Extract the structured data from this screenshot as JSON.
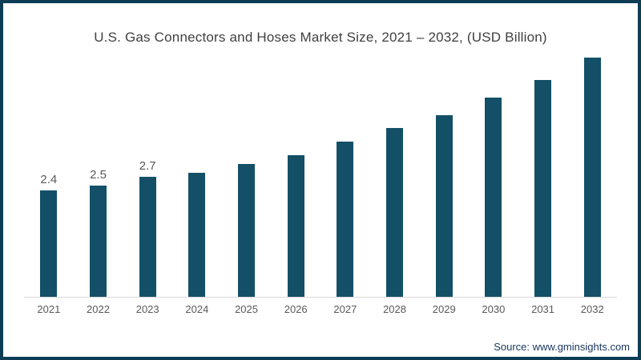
{
  "title": "U.S. Gas Connectors and Hoses Market Size, 2021 – 2032, (USD Billion)",
  "source": "Source: www.gminsights.com",
  "colors": {
    "bar": "#135067",
    "border": "#0d3c55",
    "title_text": "#404040",
    "label_text": "#595959",
    "axis_line": "#d9d9d9",
    "source_text": "#17375e",
    "background": "#ffffff"
  },
  "chart_data": {
    "type": "bar",
    "title": "U.S. Gas Connectors and Hoses Market Size, 2021 – 2032, (USD Billion)",
    "categories": [
      "2021",
      "2022",
      "2023",
      "2024",
      "2025",
      "2026",
      "2027",
      "2028",
      "2029",
      "2030",
      "2031",
      "2032"
    ],
    "values": [
      2.4,
      2.5,
      2.7,
      2.8,
      3.0,
      3.2,
      3.5,
      3.8,
      4.1,
      4.5,
      4.9,
      5.4
    ],
    "data_labels": [
      "2.4",
      "2.5",
      "2.7",
      "",
      "",
      "",
      "",
      "",
      "",
      "",
      "",
      ""
    ],
    "xlabel": "",
    "ylabel": "",
    "ylim": [
      0,
      5.6
    ],
    "grid": false,
    "legend": false,
    "y_axis_visible": false,
    "unit": "USD Billion"
  }
}
